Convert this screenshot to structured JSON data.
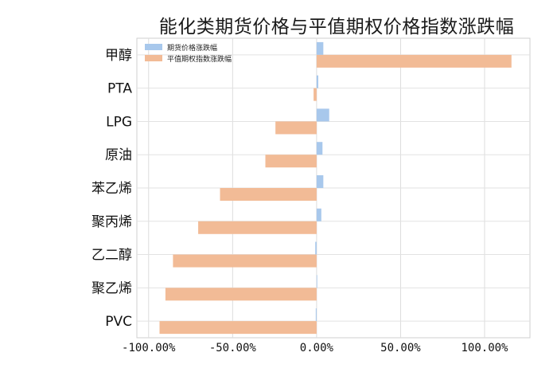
{
  "chart_data": {
    "type": "bar",
    "orientation": "horizontal",
    "title": "能化类期货价格与平值期权价格指数涨跌幅",
    "categories": [
      "甲醇",
      "PTA",
      "LPG",
      "原油",
      "苯乙烯",
      "聚丙烯",
      "乙二醇",
      "聚乙烯",
      "PVC"
    ],
    "series": [
      {
        "name": "期货价格涨跌幅",
        "color": "#a8c8ec",
        "values": [
          4.0,
          1.0,
          7.5,
          3.5,
          4.0,
          2.8,
          -0.8,
          0.0,
          -0.5
        ]
      },
      {
        "name": "平值期权指数涨跌幅",
        "color": "#f2bb96",
        "values": [
          116.0,
          -1.8,
          -24.5,
          -30.5,
          -57.5,
          -70.5,
          -85.5,
          -90.0,
          -93.5
        ]
      }
    ],
    "xlim": [
      -107,
      127
    ],
    "xticks": [
      -100,
      -50,
      0,
      50,
      100
    ],
    "xtick_labels": [
      "-100.00%",
      "-50.00%",
      "0.00%",
      "50.00%",
      "100.00%"
    ],
    "grid": true,
    "legend_position": "top-left"
  }
}
